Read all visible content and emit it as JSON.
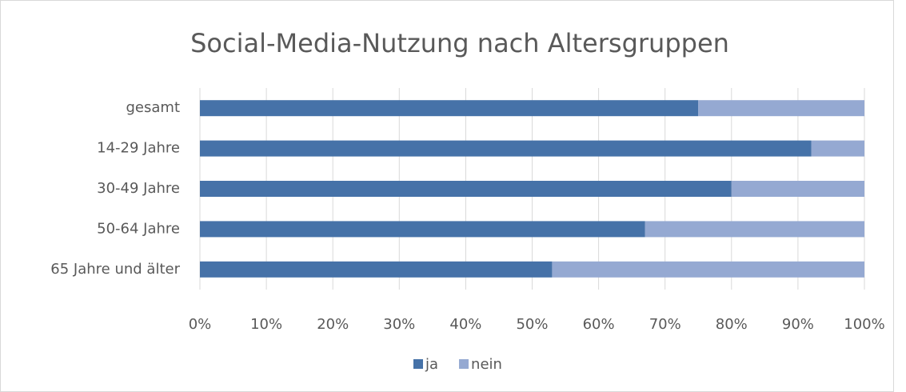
{
  "chart_data": {
    "type": "stacked_barh",
    "title": "Social-Media-Nutzung nach Altersgruppen",
    "categories": [
      "gesamt",
      "14-29 Jahre",
      "30-49 Jahre",
      "50-64 Jahre",
      "65 Jahre und älter"
    ],
    "series": [
      {
        "name": "ja",
        "color": "#4672a8",
        "values": [
          75,
          92,
          80,
          67,
          53
        ]
      },
      {
        "name": "nein",
        "color": "#95a9d2",
        "values": [
          25,
          8,
          20,
          33,
          47
        ]
      }
    ],
    "xlim": [
      0,
      100
    ],
    "xticks": [
      {
        "value": 0,
        "label": "0%"
      },
      {
        "value": 10,
        "label": "10%"
      },
      {
        "value": 20,
        "label": "20%"
      },
      {
        "value": 30,
        "label": "30%"
      },
      {
        "value": 40,
        "label": "40%"
      },
      {
        "value": 50,
        "label": "50%"
      },
      {
        "value": 60,
        "label": "60%"
      },
      {
        "value": 70,
        "label": "70%"
      },
      {
        "value": 80,
        "label": "80%"
      },
      {
        "value": 90,
        "label": "90%"
      },
      {
        "value": 100,
        "label": "100%"
      }
    ],
    "grid": true,
    "legend": "bottom"
  }
}
